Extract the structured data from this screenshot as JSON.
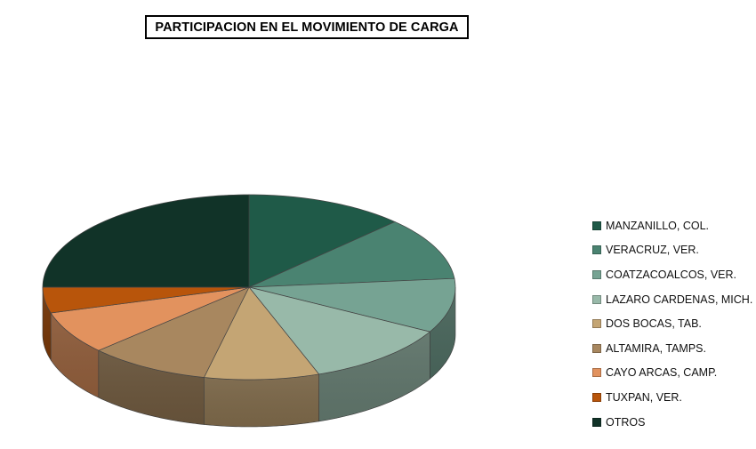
{
  "chart_data": {
    "type": "pie",
    "title": "PARTICIPACION EN EL MOVIMIENTO DE CARGA",
    "labels": [
      "MANZANILLO, COL.",
      "VERACRUZ, VER.",
      "COATZACOALCOS, VER.",
      "LAZARO CARDENAS, MICH.",
      "DOS BOCAS, TAB.",
      "ALTAMIRA, TAMPS.",
      "CAYO ARCAS, CAMP.",
      "TUXPAN, VER.",
      "OTROS"
    ],
    "values": [
      12.5,
      11.0,
      9.5,
      11.5,
      9.0,
      9.5,
      7.5,
      4.5,
      25.0
    ],
    "unit": "%",
    "colors": [
      "#1f5a48",
      "#4a8371",
      "#76a393",
      "#98b9a9",
      "#c4a574",
      "#a8875f",
      "#e2925e",
      "#b8550b",
      "#113328"
    ],
    "legend_position": "right",
    "style": "3d-exploded-none"
  }
}
